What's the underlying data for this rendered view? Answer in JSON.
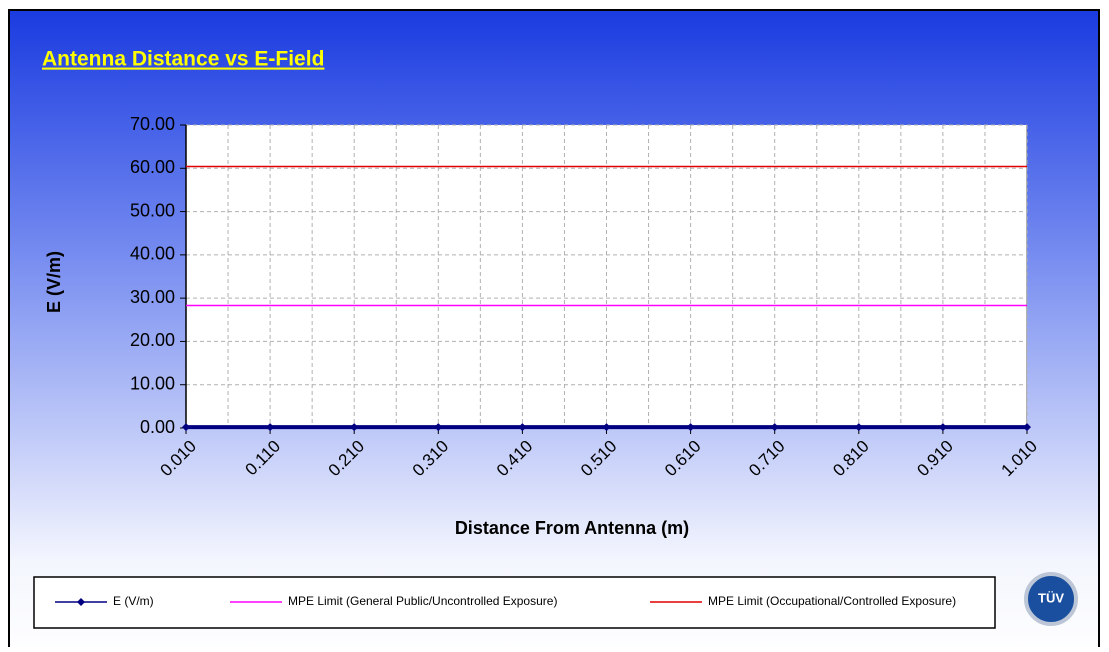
{
  "chart_data": {
    "type": "line",
    "title": "Antenna Distance vs E-Field",
    "x_label": "Distance From Antenna (m)",
    "y_label": "E (V/m)",
    "x": [
      0.01,
      0.11,
      0.21,
      0.31,
      0.41,
      0.51,
      0.61,
      0.71,
      0.81,
      0.91,
      1.01
    ],
    "series": [
      {
        "name": "E (V/m)",
        "color": "#000080",
        "marker": "diamond",
        "values": [
          0.2,
          0.2,
          0.2,
          0.2,
          0.2,
          0.2,
          0.2,
          0.2,
          0.2,
          0.2,
          0.2
        ]
      },
      {
        "name": "MPE Limit (General Public/Uncontrolled Exposure)",
        "color": "#ff00ff",
        "values": [
          28.3,
          28.3,
          28.3,
          28.3,
          28.3,
          28.3,
          28.3,
          28.3,
          28.3,
          28.3,
          28.3
        ]
      },
      {
        "name": "MPE Limit (Occupational/Controlled Exposure)",
        "color": "#e00000",
        "values": [
          60.4,
          60.4,
          60.4,
          60.4,
          60.4,
          60.4,
          60.4,
          60.4,
          60.4,
          60.4,
          60.4
        ]
      }
    ],
    "xlim": [
      0.01,
      1.01
    ],
    "ylim": [
      0,
      70
    ],
    "xticks": [
      {
        "value": 0.01,
        "label": "0.010"
      },
      {
        "value": 0.11,
        "label": "0.110"
      },
      {
        "value": 0.21,
        "label": "0.210"
      },
      {
        "value": 0.31,
        "label": "0.310"
      },
      {
        "value": 0.41,
        "label": "0.410"
      },
      {
        "value": 0.51,
        "label": "0.510"
      },
      {
        "value": 0.61,
        "label": "0.610"
      },
      {
        "value": 0.71,
        "label": "0.710"
      },
      {
        "value": 0.81,
        "label": "0.810"
      },
      {
        "value": 0.91,
        "label": "0.910"
      },
      {
        "value": 1.01,
        "label": "1.010"
      }
    ],
    "xgrid_minor": [
      0.06,
      0.16,
      0.26,
      0.36,
      0.46,
      0.56,
      0.66,
      0.76,
      0.86,
      0.96
    ],
    "yticks": [
      {
        "value": 0,
        "label": "0.00"
      },
      {
        "value": 10,
        "label": "10.00"
      },
      {
        "value": 20,
        "label": "20.00"
      },
      {
        "value": 30,
        "label": "30.00"
      },
      {
        "value": 40,
        "label": "40.00"
      },
      {
        "value": 50,
        "label": "50.00"
      },
      {
        "value": 60,
        "label": "60.00"
      },
      {
        "value": 70,
        "label": "70.00"
      }
    ],
    "grid": true,
    "legend": "bottom"
  },
  "logo": "TÜV"
}
